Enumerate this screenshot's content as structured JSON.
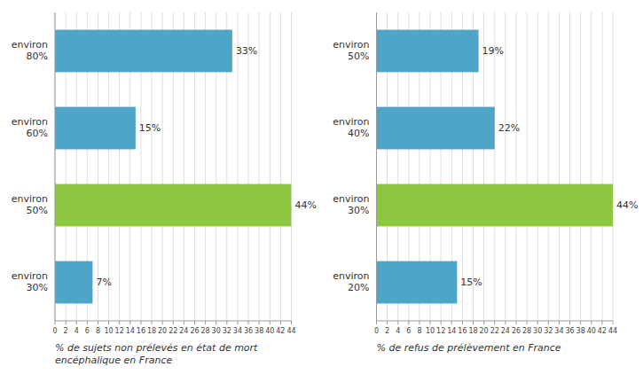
{
  "chart_data": [
    {
      "type": "bar",
      "orientation": "horizontal",
      "categories": [
        "environ\n80%",
        "environ\n60%",
        "environ\n50%",
        "environ\n30%"
      ],
      "values": [
        33,
        15,
        44,
        7
      ],
      "value_labels": [
        "33%",
        "15%",
        "44%",
        "7%"
      ],
      "data_labels": true,
      "colors": [
        "#4da6c8",
        "#4da6c8",
        "#8dc63f",
        "#4da6c8"
      ],
      "xlabel": "% de sujets non prélevés en état de mort\nencéphalique en France",
      "xlim": [
        0,
        44
      ],
      "xticks": [
        0,
        2,
        4,
        6,
        8,
        10,
        12,
        14,
        16,
        18,
        20,
        22,
        24,
        26,
        28,
        30,
        32,
        34,
        36,
        38,
        40,
        42,
        44
      ],
      "grid": true
    },
    {
      "type": "bar",
      "orientation": "horizontal",
      "categories": [
        "environ\n50%",
        "environ\n40%",
        "environ\n30%",
        "environ\n20%"
      ],
      "values": [
        19,
        22,
        44,
        15
      ],
      "value_labels": [
        "19%",
        "22%",
        "44%",
        "15%"
      ],
      "data_labels": true,
      "colors": [
        "#4da6c8",
        "#4da6c8",
        "#8dc63f",
        "#4da6c8"
      ],
      "xlabel": "% de refus de prélèvement en France",
      "xlim": [
        0,
        44
      ],
      "xticks": [
        0,
        2,
        4,
        6,
        8,
        10,
        12,
        14,
        16,
        18,
        20,
        22,
        24,
        26,
        28,
        30,
        32,
        34,
        36,
        38,
        40,
        42,
        44
      ],
      "grid": true
    }
  ]
}
